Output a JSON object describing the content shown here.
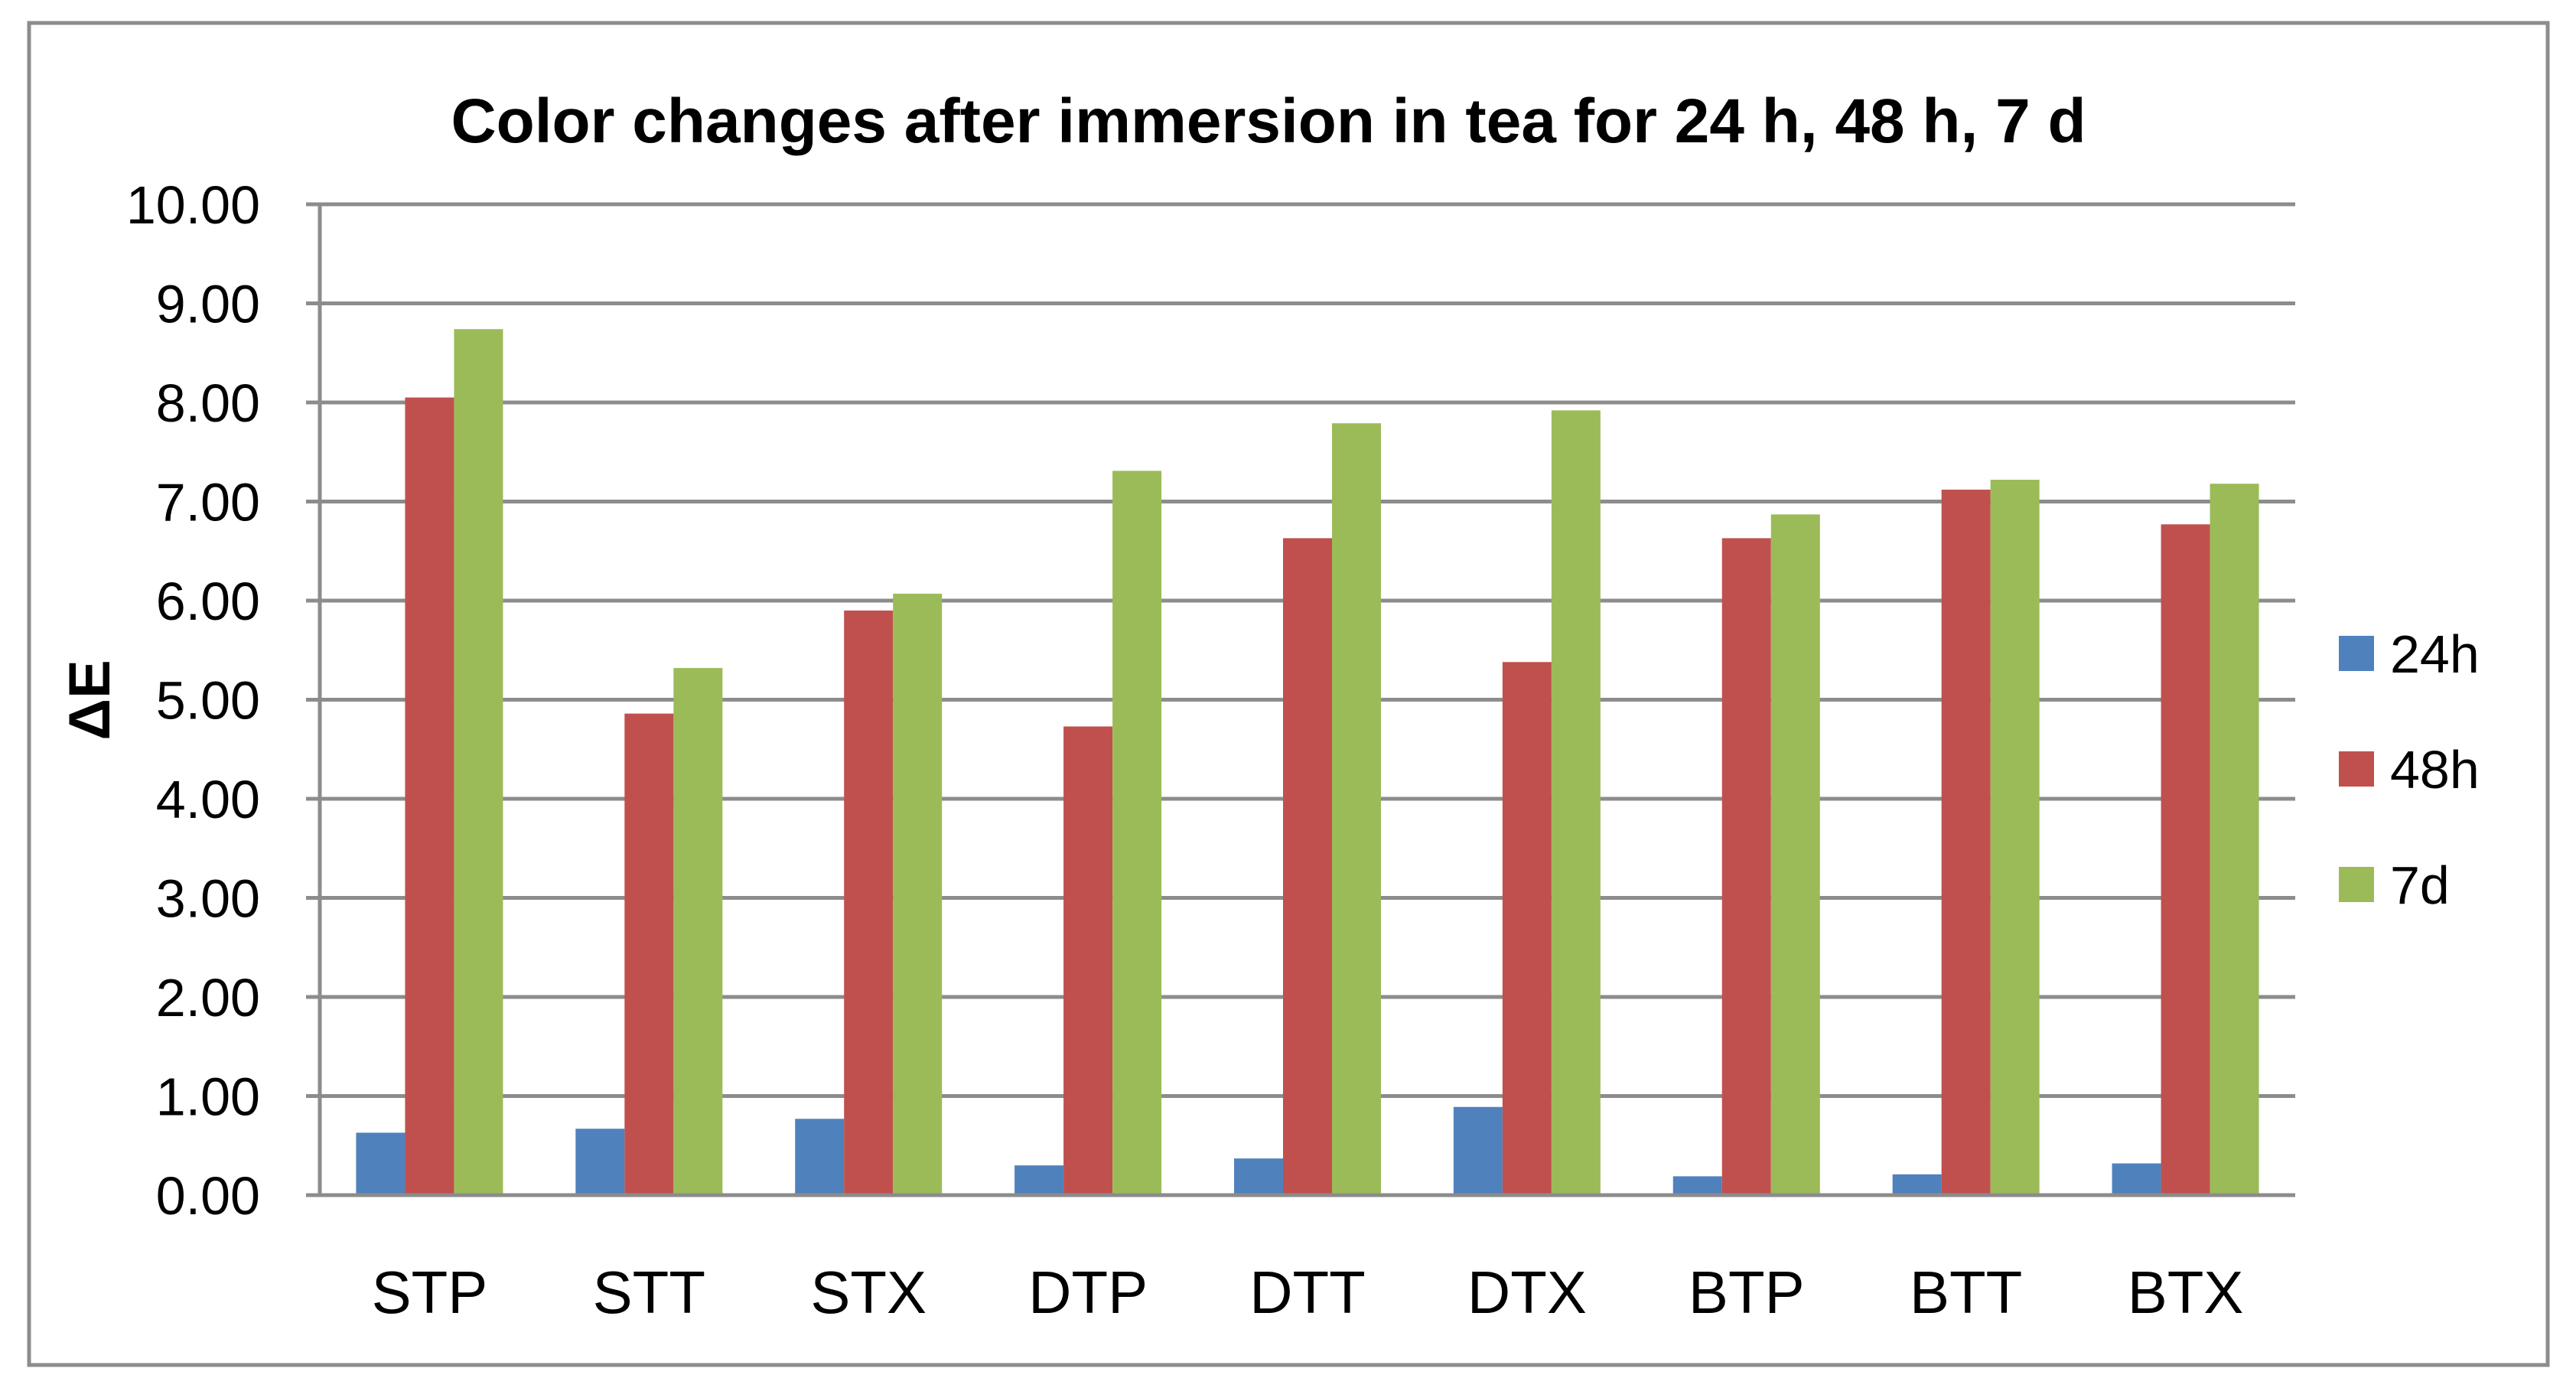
{
  "chart_data": {
    "type": "bar",
    "title": "Color changes after immersion in tea for 24 h, 48 h, 7 d",
    "xlabel": "",
    "ylabel": "ΔE",
    "ylim": [
      0,
      10
    ],
    "ytick_step": 1,
    "ytick_labels": [
      "0.00",
      "1.00",
      "2.00",
      "3.00",
      "4.00",
      "5.00",
      "6.00",
      "7.00",
      "8.00",
      "9.00",
      "10.00"
    ],
    "grid": true,
    "legend_position": "right",
    "categories": [
      "STP",
      "STT",
      "STX",
      "DTP",
      "DTT",
      "DTX",
      "BTP",
      "BTT",
      "BTX"
    ],
    "series": [
      {
        "name": "24h",
        "color": "#4F81BD",
        "values": [
          0.63,
          0.67,
          0.77,
          0.3,
          0.37,
          0.89,
          0.19,
          0.21,
          0.32
        ]
      },
      {
        "name": "48h",
        "color": "#C0504D",
        "values": [
          8.05,
          4.86,
          5.9,
          4.73,
          6.63,
          5.38,
          6.63,
          7.12,
          6.77
        ]
      },
      {
        "name": "7d",
        "color": "#9BBB59",
        "values": [
          8.74,
          5.32,
          6.07,
          7.31,
          7.79,
          7.92,
          6.87,
          7.22,
          7.18
        ]
      }
    ]
  }
}
